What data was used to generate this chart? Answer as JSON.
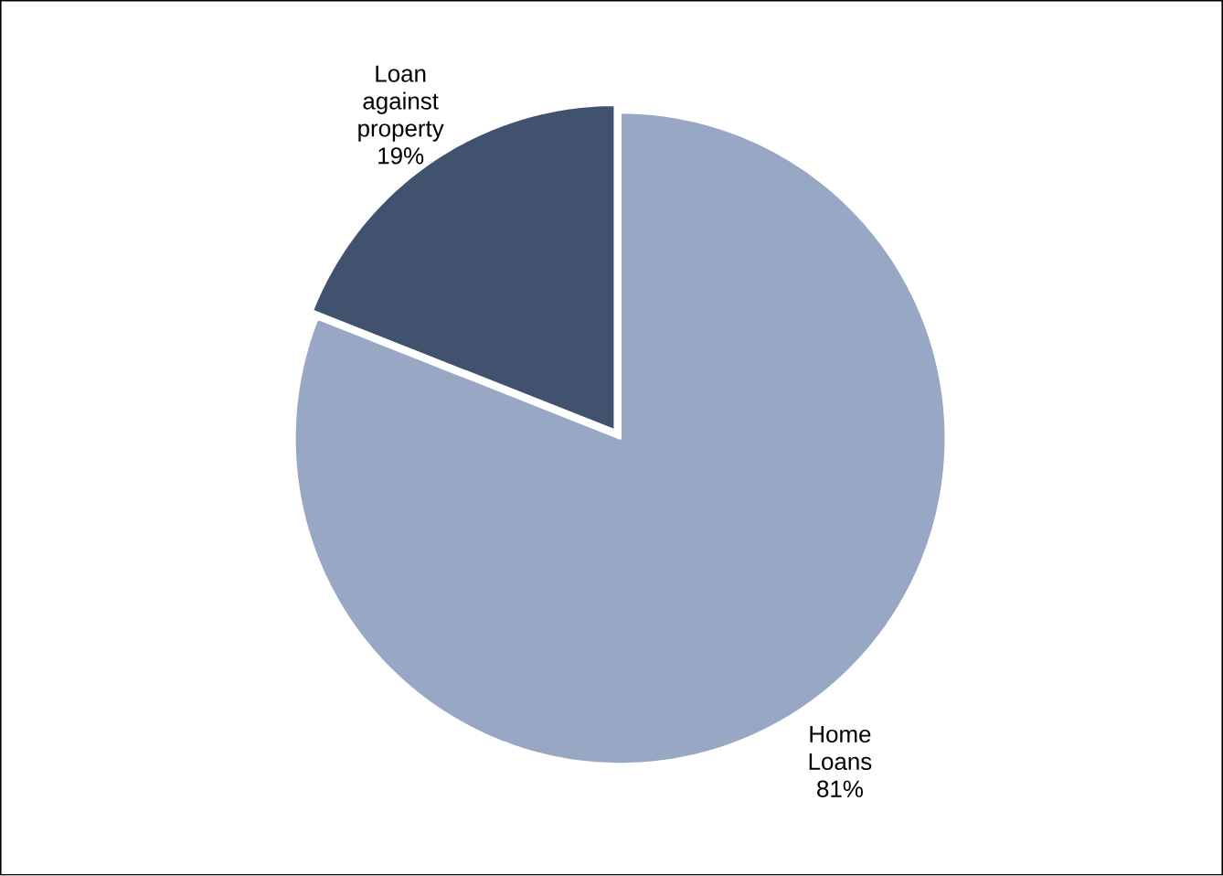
{
  "chart_data": {
    "type": "pie",
    "categories": [
      "Home Loans",
      "Loan against property"
    ],
    "values": [
      81,
      19
    ],
    "value_labels": [
      "81%",
      "19%"
    ],
    "colors": [
      "#97a7c4",
      "#41526f"
    ]
  }
}
